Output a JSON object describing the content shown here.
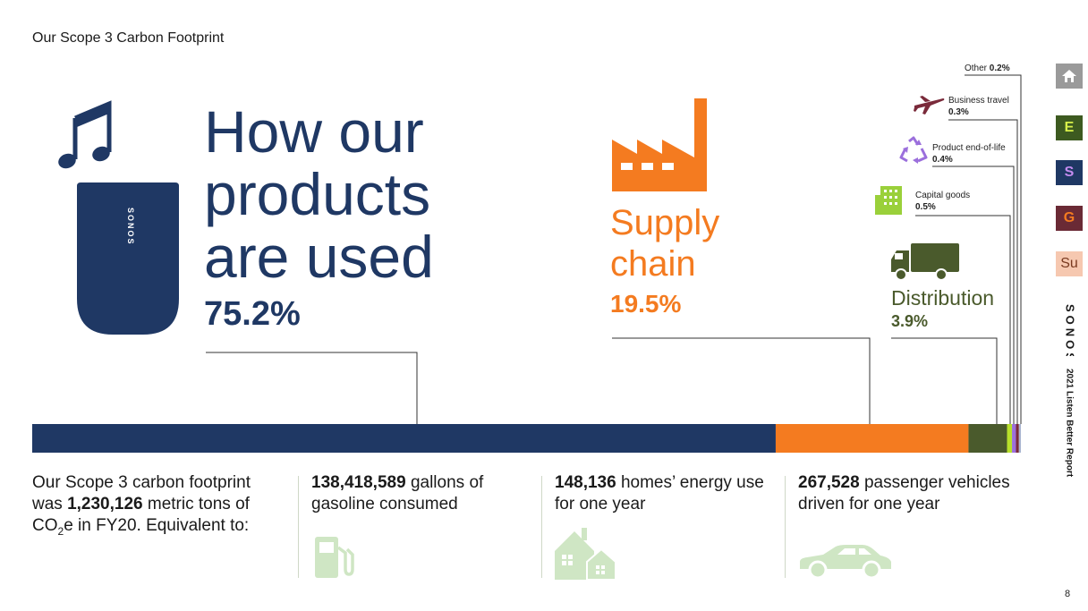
{
  "header": {
    "title": "Our Scope 3 Carbon Footprint"
  },
  "chart_data": {
    "type": "bar",
    "orientation": "horizontal-stacked",
    "unit": "%",
    "categories": [
      "How our products are used",
      "Supply chain",
      "Distribution",
      "Capital goods",
      "Product end-of-life",
      "Business travel",
      "Other"
    ],
    "values": [
      75.2,
      19.5,
      3.9,
      0.5,
      0.4,
      0.3,
      0.2
    ],
    "colors": [
      "#1f3864",
      "#f47b20",
      "#4a5a2c",
      "#b8e02a",
      "#9b6fdc",
      "#7a2a3a",
      "#a9b5d0"
    ],
    "legend": "callout-labels"
  },
  "callouts": {
    "usage": {
      "line1": "How our",
      "line2": "products",
      "line3": "are used",
      "value": "75.2%"
    },
    "supply": {
      "line1": "Supply",
      "line2": "chain",
      "value": "19.5%"
    },
    "distribution": {
      "label": "Distribution",
      "value": "3.9%"
    },
    "capital": {
      "label": "Capital goods",
      "value": "0.5%"
    },
    "eol": {
      "label": "Product end-of-life",
      "value": "0.4%"
    },
    "travel": {
      "label": "Business travel",
      "value": "0.3%"
    },
    "other": {
      "label": "Other",
      "value": "0.2%"
    }
  },
  "speaker_logo": "SONOS",
  "footer": {
    "summary": {
      "pre": "Our Scope 3 carbon footprint was ",
      "bold": "1,230,126",
      "post1": " metric tons of CO",
      "sub": "2",
      "post2": "e in FY20. Equivalent to:"
    },
    "stats": [
      {
        "bold": "138,418,589",
        "text": " gallons of gasoline consumed",
        "icon": "fuel-pump-icon"
      },
      {
        "bold": "148,136",
        "text": " homes’ energy use for one year",
        "icon": "houses-icon"
      },
      {
        "bold": "267,528",
        "text": " passenger vehicles driven for one year",
        "icon": "car-icon"
      }
    ]
  },
  "sidenav": {
    "items": [
      {
        "label": "",
        "icon": "home-icon",
        "bg": "#9a9a9a",
        "fg": "#ffffff"
      },
      {
        "label": "E",
        "bg": "#3d5a20",
        "fg": "#d8f04a"
      },
      {
        "label": "S",
        "bg": "#1f3864",
        "fg": "#c58cf0"
      },
      {
        "label": "G",
        "bg": "#6a2a35",
        "fg": "#f47b20"
      },
      {
        "label": "Su",
        "bg": "#f6c8b0",
        "fg": "#7a3a20"
      }
    ],
    "brand": "SONOS",
    "report": "2021 Listen Better Report"
  },
  "page_number": "8"
}
